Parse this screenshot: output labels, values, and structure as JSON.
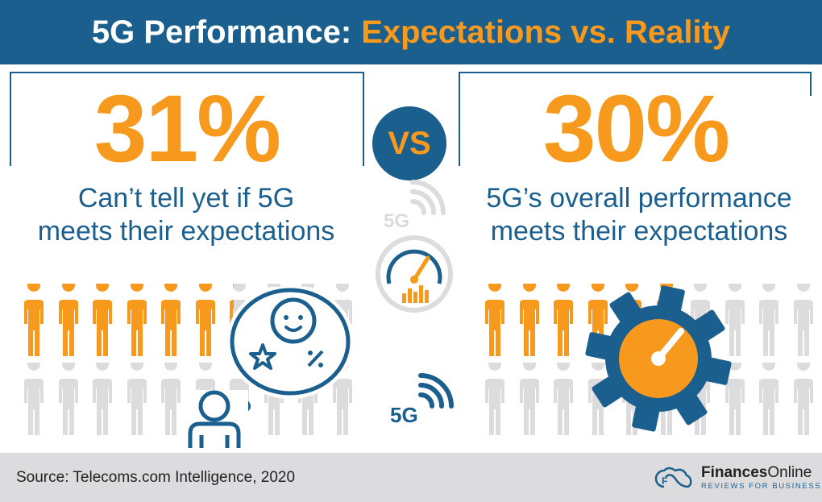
{
  "header": {
    "title_part1": "5G Performance:",
    "title_part2": "Expectations vs. Reality"
  },
  "left": {
    "percent": "31%",
    "line1": "Can’t tell yet if 5G",
    "line2": "meets their expectations",
    "share": 0.31
  },
  "vs_label": "VS",
  "right": {
    "percent": "30%",
    "line1": "5G’s overall performance",
    "line2": "meets their expectations",
    "share": 0.3
  },
  "center_icons": [
    "5g-signal-icon",
    "speedometer-icon",
    "5g-signal-icon"
  ],
  "center_icon_text": "5G",
  "footer": {
    "source": "Source: Telecoms.com Intelligence, 2020",
    "logo_bold": "Finances",
    "logo_regular": "Online",
    "logo_tagline": "REVIEWS FOR BUSINESS"
  },
  "colors": {
    "brand_blue": "#1b5f8f",
    "orange": "#f7991c",
    "gray_person": "#dcdcde",
    "footer_bg": "#dcdcde"
  }
}
